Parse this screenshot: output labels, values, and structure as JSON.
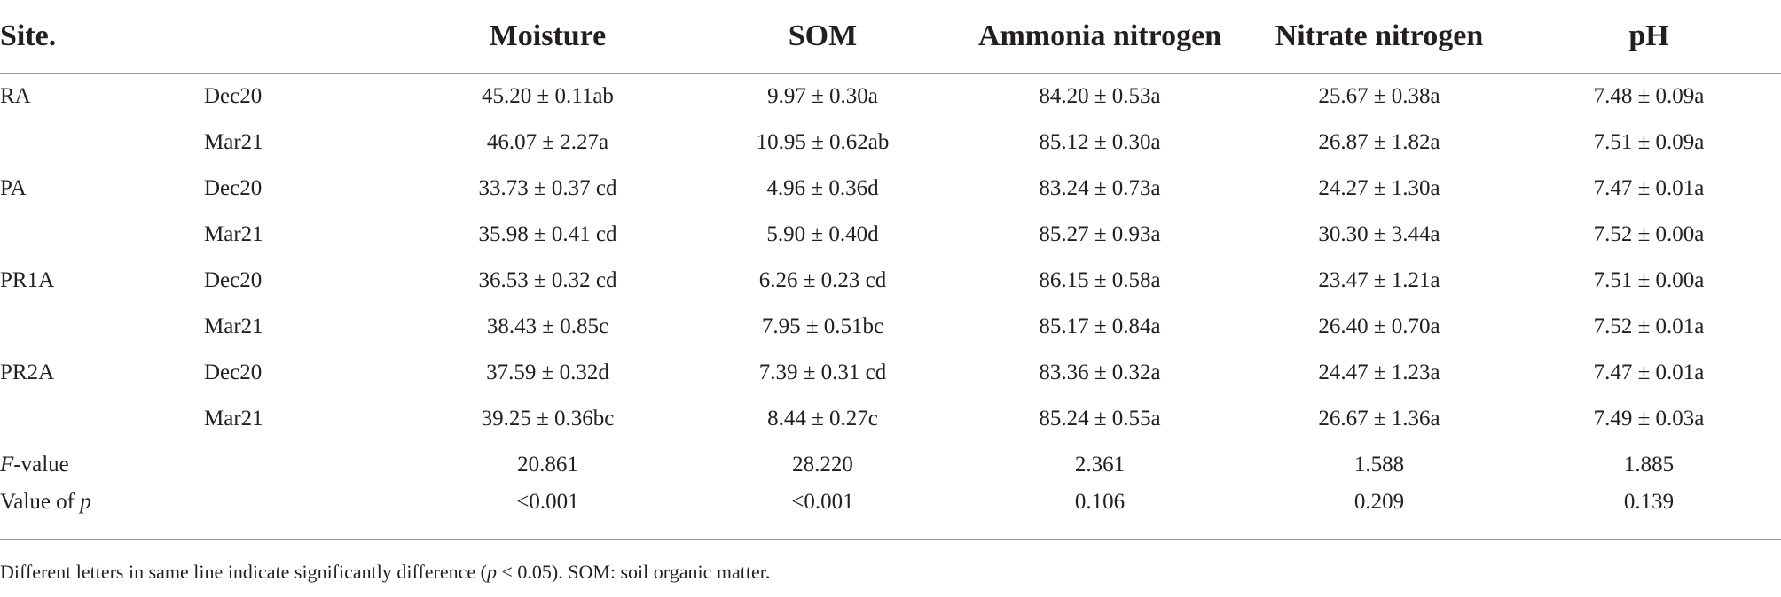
{
  "table": {
    "headers": {
      "site": "Site.",
      "month": "",
      "moisture": "Moisture",
      "som": "SOM",
      "ammonia": "Ammonia nitrogen",
      "nitrate": "Nitrate nitrogen",
      "ph": "pH"
    },
    "rows": [
      {
        "site": "RA",
        "month": "Dec20",
        "moisture": "45.20 ± 0.11ab",
        "som": "9.97 ± 0.30a",
        "ammonia": "84.20 ± 0.53a",
        "nitrate": "25.67 ± 0.38a",
        "ph": "7.48 ± 0.09a"
      },
      {
        "site": "",
        "month": "Mar21",
        "moisture": "46.07 ± 2.27a",
        "som": "10.95 ± 0.62ab",
        "ammonia": "85.12 ± 0.30a",
        "nitrate": "26.87 ± 1.82a",
        "ph": "7.51 ± 0.09a"
      },
      {
        "site": "PA",
        "month": "Dec20",
        "moisture": "33.73 ± 0.37 cd",
        "som": "4.96 ± 0.36d",
        "ammonia": "83.24 ± 0.73a",
        "nitrate": "24.27 ± 1.30a",
        "ph": "7.47 ± 0.01a"
      },
      {
        "site": "",
        "month": "Mar21",
        "moisture": "35.98 ± 0.41 cd",
        "som": "5.90 ± 0.40d",
        "ammonia": "85.27 ± 0.93a",
        "nitrate": "30.30 ± 3.44a",
        "ph": "7.52 ± 0.00a"
      },
      {
        "site": "PR1A",
        "month": "Dec20",
        "moisture": "36.53 ± 0.32 cd",
        "som": "6.26 ± 0.23 cd",
        "ammonia": "86.15 ± 0.58a",
        "nitrate": "23.47 ± 1.21a",
        "ph": "7.51 ± 0.00a"
      },
      {
        "site": "",
        "month": "Mar21",
        "moisture": "38.43 ± 0.85c",
        "som": "7.95 ± 0.51bc",
        "ammonia": "85.17 ± 0.84a",
        "nitrate": "26.40 ± 0.70a",
        "ph": "7.52 ± 0.01a"
      },
      {
        "site": "PR2A",
        "month": "Dec20",
        "moisture": "37.59 ± 0.32d",
        "som": "7.39 ± 0.31 cd",
        "ammonia": "83.36 ± 0.32a",
        "nitrate": "24.47 ± 1.23a",
        "ph": "7.47 ± 0.01a"
      },
      {
        "site": "",
        "month": "Mar21",
        "moisture": "39.25 ± 0.36bc",
        "som": "8.44 ± 0.27c",
        "ammonia": "85.24 ± 0.55a",
        "nitrate": "26.67 ± 1.36a",
        "ph": "7.49 ± 0.03a"
      }
    ],
    "f_row": {
      "label_italic": "F",
      "label_rest": "-value",
      "moisture": "20.861",
      "som": "28.220",
      "ammonia": "2.361",
      "nitrate": "1.588",
      "ph": "1.885"
    },
    "p_row": {
      "label_rest": "Value of ",
      "label_italic": "p",
      "moisture": "<0.001",
      "som": "<0.001",
      "ammonia": "0.106",
      "nitrate": "0.209",
      "ph": "0.139"
    }
  },
  "footnote": {
    "part1": "Different letters in same line indicate significantly difference (",
    "p": "p",
    "part2": " < 0.05). SOM: soil organic matter."
  }
}
